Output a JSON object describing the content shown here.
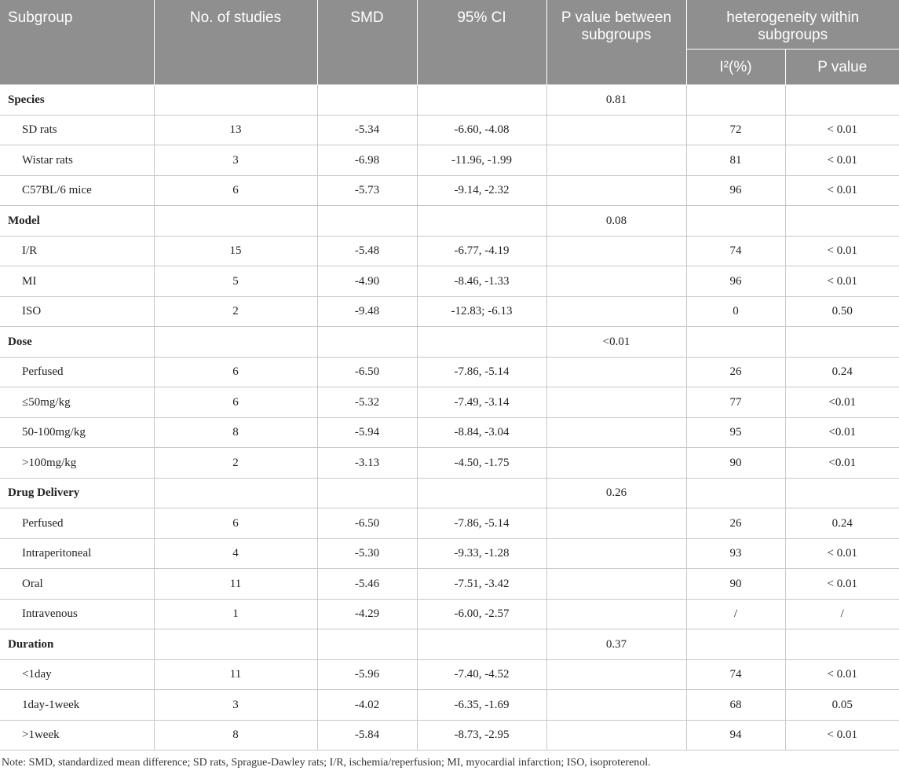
{
  "header": {
    "subgroup": "Subgroup",
    "studies": "No. of studies",
    "smd": "SMD",
    "ci": "95% CI",
    "p_between": "P value between subgroups",
    "heterogeneity": "heterogeneity within subgroups",
    "i2": "I²(%)",
    "p_value": "P value"
  },
  "rows": [
    {
      "type": "group",
      "label": "Species",
      "p_between": "0.81"
    },
    {
      "type": "item",
      "label": "SD rats",
      "n": "13",
      "smd": "-5.34",
      "ci": "-6.60, -4.08",
      "i2": "72",
      "p": "< 0.01"
    },
    {
      "type": "item",
      "label": "Wistar rats",
      "n": "3",
      "smd": "-6.98",
      "ci": "-11.96, -1.99",
      "i2": "81",
      "p": "< 0.01"
    },
    {
      "type": "item",
      "label": "C57BL/6 mice",
      "n": "6",
      "smd": "-5.73",
      "ci": "-9.14, -2.32",
      "i2": "96",
      "p": "< 0.01"
    },
    {
      "type": "group",
      "label": "Model",
      "p_between": "0.08"
    },
    {
      "type": "item",
      "label": "I/R",
      "n": "15",
      "smd": "-5.48",
      "ci": "-6.77, -4.19",
      "i2": "74",
      "p": "< 0.01"
    },
    {
      "type": "item",
      "label": "MI",
      "n": "5",
      "smd": "-4.90",
      "ci": "-8.46, -1.33",
      "i2": "96",
      "p": "< 0.01"
    },
    {
      "type": "item",
      "label": "ISO",
      "n": "2",
      "smd": "-9.48",
      "ci": "-12.83; -6.13",
      "i2": "0",
      "p": "0.50"
    },
    {
      "type": "group",
      "label": "Dose",
      "p_between": "<0.01"
    },
    {
      "type": "item",
      "label": "Perfused",
      "n": "6",
      "smd": "-6.50",
      "ci": "-7.86, -5.14",
      "i2": "26",
      "p": "0.24"
    },
    {
      "type": "item",
      "label": "≤50mg/kg",
      "n": "6",
      "smd": "-5.32",
      "ci": "-7.49, -3.14",
      "i2": "77",
      "p": "<0.01"
    },
    {
      "type": "item",
      "label": "50-100mg/kg",
      "n": "8",
      "smd": "-5.94",
      "ci": "-8.84, -3.04",
      "i2": "95",
      "p": "<0.01"
    },
    {
      "type": "item",
      "label": ">100mg/kg",
      "n": "2",
      "smd": "-3.13",
      "ci": "-4.50, -1.75",
      "i2": "90",
      "p": "<0.01"
    },
    {
      "type": "group",
      "label": "Drug Delivery",
      "p_between": "0.26"
    },
    {
      "type": "item",
      "label": "Perfused",
      "n": "6",
      "smd": "-6.50",
      "ci": "-7.86, -5.14",
      "i2": "26",
      "p": "0.24"
    },
    {
      "type": "item",
      "label": "Intraperitoneal",
      "n": "4",
      "smd": "-5.30",
      "ci": "-9.33, -1.28",
      "i2": "93",
      "p": "< 0.01"
    },
    {
      "type": "item",
      "label": "Oral",
      "n": "11",
      "smd": "-5.46",
      "ci": "-7.51, -3.42",
      "i2": "90",
      "p": "< 0.01"
    },
    {
      "type": "item",
      "label": "Intravenous",
      "n": "1",
      "smd": "-4.29",
      "ci": "-6.00, -2.57",
      "i2": "/",
      "p": "/"
    },
    {
      "type": "group",
      "label": "Duration",
      "p_between": "0.37"
    },
    {
      "type": "item",
      "label": "<1day",
      "n": "11",
      "smd": "-5.96",
      "ci": "-7.40, -4.52",
      "i2": "74",
      "p": "< 0.01"
    },
    {
      "type": "item",
      "label": "1day-1week",
      "n": "3",
      "smd": "-4.02",
      "ci": "-6.35, -1.69",
      "i2": "68",
      "p": "0.05"
    },
    {
      "type": "item",
      "label": ">1week",
      "n": "8",
      "smd": "-5.84",
      "ci": "-8.73, -2.95",
      "i2": "94",
      "p": "< 0.01"
    }
  ],
  "note": "Note: SMD, standardized mean difference; SD rats, Sprague-Dawley rats; I/R, ischemia/reperfusion; MI, myocardial infarction; ISO, isoproterenol."
}
